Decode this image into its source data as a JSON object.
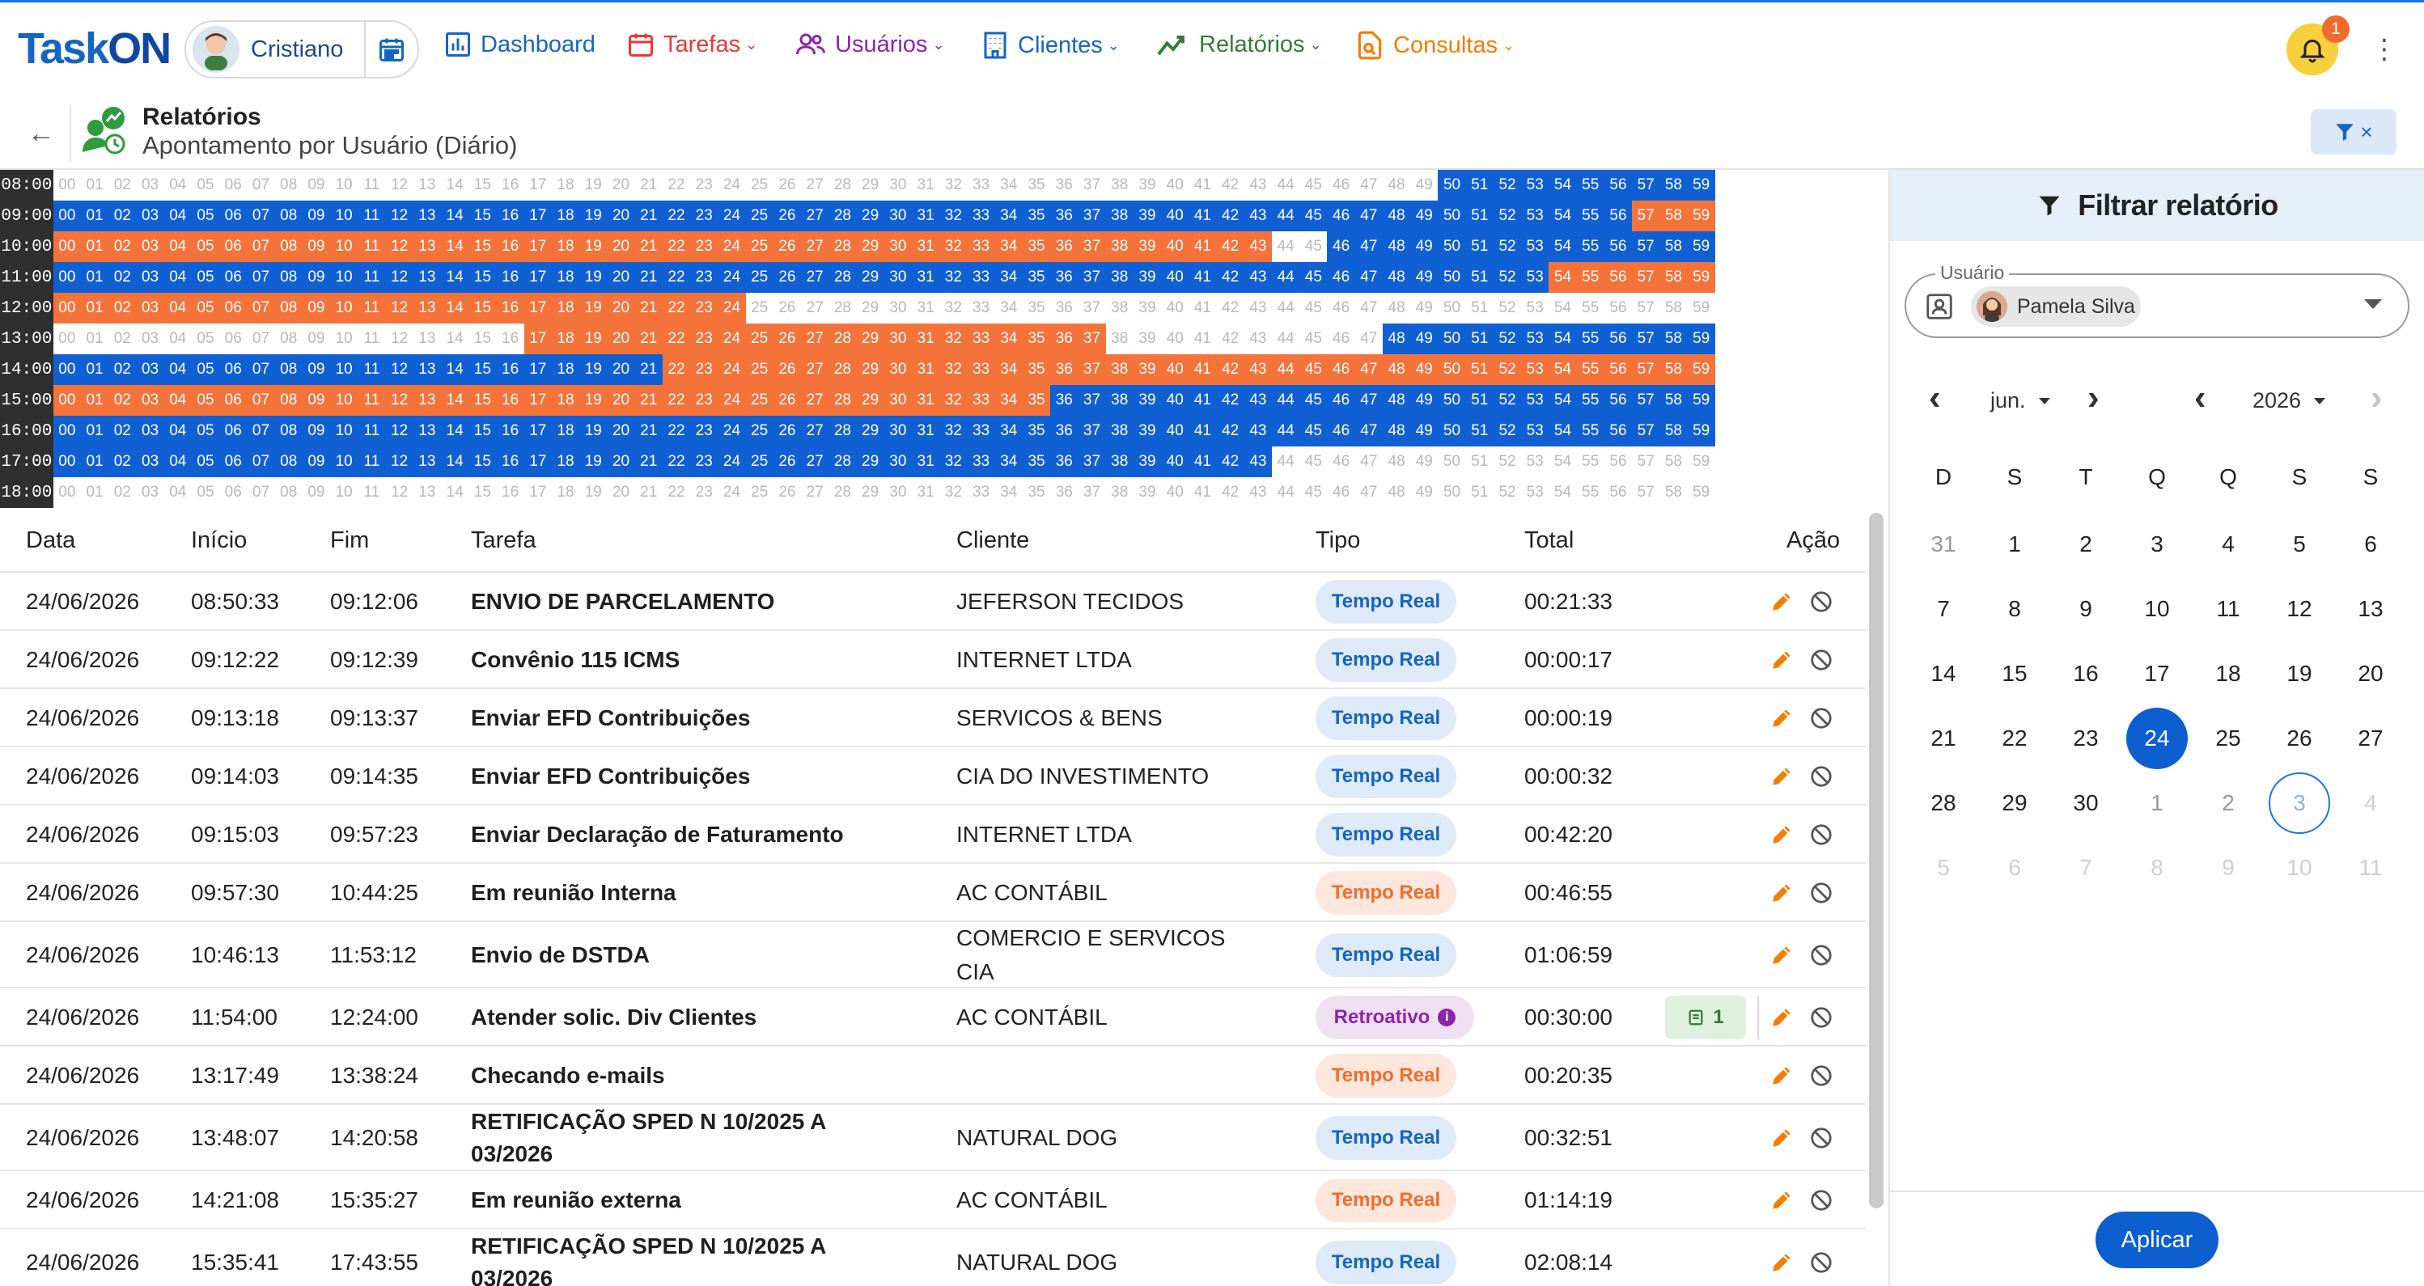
{
  "app": {
    "logo_text": "TaskON",
    "logo_main": "Task",
    "logo_on": "ON"
  },
  "user": {
    "name": "Cristiano"
  },
  "nav": [
    {
      "label": "Dashboard",
      "color": "#1565c0",
      "icon": "bar-chart-icon",
      "chevron": ""
    },
    {
      "label": "Tarefas",
      "color": "#e53935",
      "icon": "calendar-icon",
      "chevron": "⌄"
    },
    {
      "label": "Usuários",
      "color": "#8e24aa",
      "icon": "users-icon",
      "chevron": "⌄"
    },
    {
      "label": "Clientes",
      "color": "#1565c0",
      "icon": "building-icon",
      "chevron": "⌄"
    },
    {
      "label": "Relatórios",
      "color": "#2e7d32",
      "icon": "trend-icon",
      "chevron": "⌄"
    },
    {
      "label": "Consultas",
      "color": "#f57c00",
      "icon": "search-doc-icon",
      "chevron": "⌄"
    }
  ],
  "notifications": {
    "count": "1"
  },
  "header": {
    "title": "Relatórios",
    "subtitle": "Apontamento por Usuário (Diário)",
    "filter_close": "×"
  },
  "minute_grid": {
    "hours": [
      "08:00",
      "09:00",
      "10:00",
      "11:00",
      "12:00",
      "13:00",
      "14:00",
      "15:00",
      "16:00",
      "17:00",
      "18:00"
    ],
    "minutes": [
      "00",
      "01",
      "02",
      "03",
      "04",
      "05",
      "06",
      "07",
      "08",
      "09",
      "10",
      "11",
      "12",
      "13",
      "14",
      "15",
      "16",
      "17",
      "18",
      "19",
      "20",
      "21",
      "22",
      "23",
      "24",
      "25",
      "26",
      "27",
      "28",
      "29",
      "30",
      "31",
      "32",
      "33",
      "34",
      "35",
      "36",
      "37",
      "38",
      "39",
      "40",
      "41",
      "42",
      "43",
      "44",
      "45",
      "46",
      "47",
      "48",
      "49",
      "50",
      "51",
      "52",
      "53",
      "54",
      "55",
      "56",
      "57",
      "58",
      "59"
    ],
    "legend_note": "e = vazio, b = azul (Tempo Real), o = laranja",
    "rows": [
      "eeeeeeeeeeeeeeeeeeeeeeeeeeeeeeeeeeeeeeeeeeeeeeeeeebbbbbbbbbb",
      "bbbbbbbbbbbbbbbbbbbbbbbbbbbbbbbbbbbbbbbbbbbbbbbbbbbbbbbbbooo",
      "ooooooooooooooooooooooooooooooooooooooooooooeebbbbbbbbbbbbbb",
      "bbbbbbbbbbbbbbbbbbbbbbbbbbbbbbbbbbbbbbbbbbbbbbbbbbbbbboooooo",
      "oooooooooooooooooooooooooeeeeeeeeeeeeeeeeeeeeeeeeeeeeeeeeeee",
      "eeeeeeeeeeeeeeeeeoooooooooooooooooooooeeeeeeeeeebbbbbbbbbbbb",
      "bbbbbbbbbbbbbbbbbbbbbboooooooooooooooooooooooooooooooooooooo",
      "oooooooooooooooooooooooooooooooooooobbbbbbbbbbbbbbbbbbbbbbbbb",
      "bbbbbbbbbbbbbbbbbbbbbbbbbbbbbbbbbbbbbbbbbbbbbbbbbbbbbbbbbbbb",
      "bbbbbbbbbbbbbbbbbbbbbbbbbbbbbbbbbbbbbbbbbbbbeeeeeeeeeeeeeeee",
      "eeeeeeeeeeeeeeeeeeeeeeeeeeeeeeeeeeeeeeeeeeeeeeeeeeeeeeeeeeee"
    ]
  },
  "table": {
    "headers": {
      "data": "Data",
      "inicio": "Início",
      "fim": "Fim",
      "tarefa": "Tarefa",
      "cliente": "Cliente",
      "tipo": "Tipo",
      "total": "Total",
      "acao": "Ação"
    },
    "rows": [
      {
        "data": "24/06/2026",
        "inicio": "08:50:33",
        "fim": "09:12:06",
        "tarefa": "ENVIO DE PARCELAMENTO",
        "cliente": "JEFERSON TECIDOS",
        "tipo": "Tempo Real",
        "tipo_style": "real",
        "total": "00:21:33",
        "tall": false
      },
      {
        "data": "24/06/2026",
        "inicio": "09:12:22",
        "fim": "09:12:39",
        "tarefa": "Convênio 115 ICMS",
        "cliente": "INTERNET LTDA",
        "tipo": "Tempo Real",
        "tipo_style": "real",
        "total": "00:00:17",
        "tall": false
      },
      {
        "data": "24/06/2026",
        "inicio": "09:13:18",
        "fim": "09:13:37",
        "tarefa": "Enviar EFD Contribuições",
        "cliente": "SERVICOS & BENS",
        "tipo": "Tempo Real",
        "tipo_style": "real",
        "total": "00:00:19",
        "tall": false
      },
      {
        "data": "24/06/2026",
        "inicio": "09:14:03",
        "fim": "09:14:35",
        "tarefa": "Enviar EFD Contribuições",
        "cliente": "CIA DO INVESTIMENTO",
        "tipo": "Tempo Real",
        "tipo_style": "real",
        "total": "00:00:32",
        "tall": false
      },
      {
        "data": "24/06/2026",
        "inicio": "09:15:03",
        "fim": "09:57:23",
        "tarefa": "Enviar Declaração de Faturamento",
        "cliente": "INTERNET LTDA",
        "tipo": "Tempo Real",
        "tipo_style": "real",
        "total": "00:42:20",
        "tall": false
      },
      {
        "data": "24/06/2026",
        "inicio": "09:57:30",
        "fim": "10:44:25",
        "tarefa": "Em reunião Interna",
        "cliente": "AC CONTÁBIL",
        "tipo": "Tempo Real",
        "tipo_style": "realo",
        "total": "00:46:55",
        "tall": false
      },
      {
        "data": "24/06/2026",
        "inicio": "10:46:13",
        "fim": "11:53:12",
        "tarefa": "Envio de DSTDA",
        "cliente": "COMERCIO E SERVICOS CIA",
        "tipo": "Tempo Real",
        "tipo_style": "real",
        "total": "01:06:59",
        "tall": true
      },
      {
        "data": "24/06/2026",
        "inicio": "11:54:00",
        "fim": "12:24:00",
        "tarefa": "Atender solic. Div Clientes",
        "cliente": "AC CONTÁBIL",
        "tipo": "Retroativo",
        "tipo_style": "retro",
        "total": "00:30:00",
        "tall": false,
        "notes": "1"
      },
      {
        "data": "24/06/2026",
        "inicio": "13:17:49",
        "fim": "13:38:24",
        "tarefa": "Checando e-mails",
        "cliente": "",
        "tipo": "Tempo Real",
        "tipo_style": "realo",
        "total": "00:20:35",
        "tall": false
      },
      {
        "data": "24/06/2026",
        "inicio": "13:48:07",
        "fim": "14:20:58",
        "tarefa": "RETIFICAÇÃO SPED N 10/2025 A 03/2026",
        "cliente": "NATURAL DOG",
        "tipo": "Tempo Real",
        "tipo_style": "real",
        "total": "00:32:51",
        "tall": true
      },
      {
        "data": "24/06/2026",
        "inicio": "14:21:08",
        "fim": "15:35:27",
        "tarefa": "Em reunião externa",
        "cliente": "AC CONTÁBIL",
        "tipo": "Tempo Real",
        "tipo_style": "realo",
        "total": "01:14:19",
        "tall": false
      },
      {
        "data": "24/06/2026",
        "inicio": "15:35:41",
        "fim": "17:43:55",
        "tarefa": "RETIFICAÇÃO SPED N 10/2025 A 03/2026",
        "cliente": "NATURAL DOG",
        "tipo": "Tempo Real",
        "tipo_style": "real",
        "total": "02:08:14",
        "tall": true
      }
    ]
  },
  "filter_panel": {
    "title": "Filtrar relatório",
    "user_label": "Usuário",
    "user_value": "Pamela Silva",
    "month": "jun.",
    "year": "2026",
    "weekdays": [
      "D",
      "S",
      "T",
      "Q",
      "Q",
      "S",
      "S"
    ],
    "weeks": [
      [
        {
          "d": "31",
          "s": "out"
        },
        {
          "d": "1"
        },
        {
          "d": "2"
        },
        {
          "d": "3"
        },
        {
          "d": "4"
        },
        {
          "d": "5"
        },
        {
          "d": "6"
        }
      ],
      [
        {
          "d": "7"
        },
        {
          "d": "8"
        },
        {
          "d": "9"
        },
        {
          "d": "10"
        },
        {
          "d": "11"
        },
        {
          "d": "12"
        },
        {
          "d": "13"
        }
      ],
      [
        {
          "d": "14"
        },
        {
          "d": "15"
        },
        {
          "d": "16"
        },
        {
          "d": "17"
        },
        {
          "d": "18"
        },
        {
          "d": "19"
        },
        {
          "d": "20"
        }
      ],
      [
        {
          "d": "21"
        },
        {
          "d": "22"
        },
        {
          "d": "23"
        },
        {
          "d": "24",
          "s": "sel"
        },
        {
          "d": "25"
        },
        {
          "d": "26"
        },
        {
          "d": "27"
        }
      ],
      [
        {
          "d": "28"
        },
        {
          "d": "29"
        },
        {
          "d": "30"
        },
        {
          "d": "1",
          "s": "out"
        },
        {
          "d": "2",
          "s": "out"
        },
        {
          "d": "3",
          "s": "today"
        },
        {
          "d": "4",
          "s": "dim"
        }
      ],
      [
        {
          "d": "5",
          "s": "dim"
        },
        {
          "d": "6",
          "s": "dim"
        },
        {
          "d": "7",
          "s": "dim"
        },
        {
          "d": "8",
          "s": "dim"
        },
        {
          "d": "9",
          "s": "dim"
        },
        {
          "d": "10",
          "s": "dim"
        },
        {
          "d": "11",
          "s": "dim"
        }
      ]
    ],
    "apply_label": "Aplicar"
  }
}
